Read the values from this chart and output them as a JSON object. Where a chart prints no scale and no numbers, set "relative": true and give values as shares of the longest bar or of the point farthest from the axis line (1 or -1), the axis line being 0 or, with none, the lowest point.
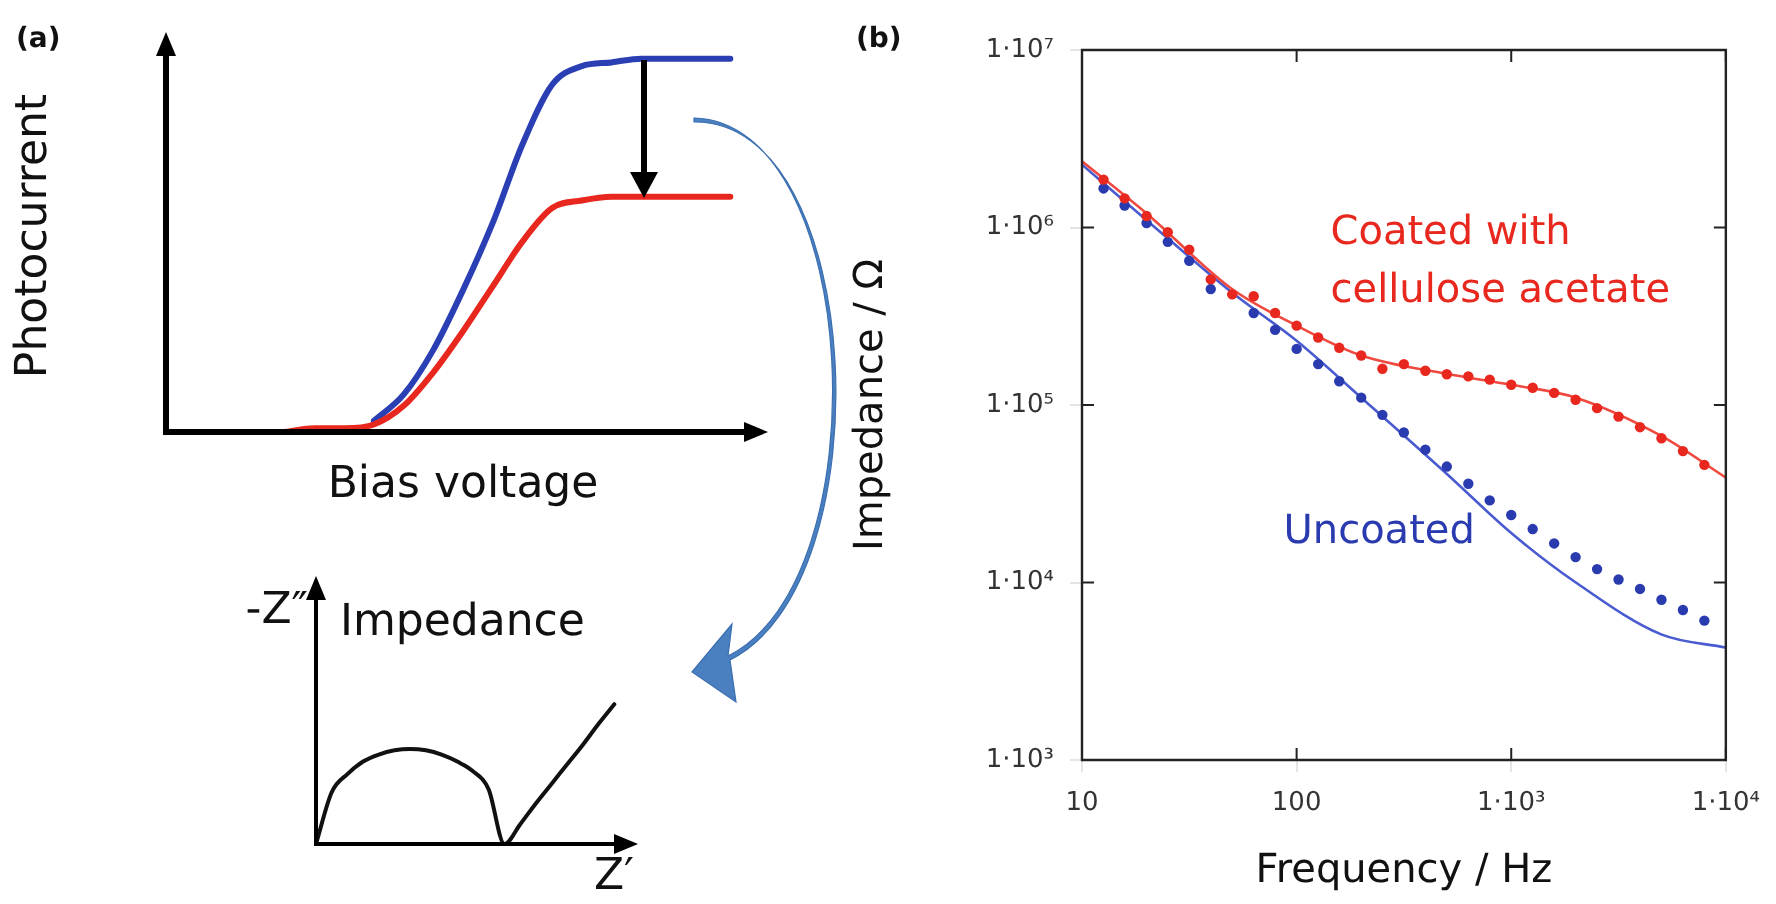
{
  "chart_data": [
    {
      "type": "line",
      "xlabel": "Bias voltage",
      "ylabel": "Photocurrent",
      "annotations": [
        "(a)"
      ],
      "relative": true,
      "tick_labels": false,
      "categories": [
        null,
        null,
        null,
        null,
        null,
        null,
        null,
        null,
        null,
        null,
        null,
        null,
        null,
        null,
        null,
        null,
        null,
        null,
        null,
        null,
        null
      ],
      "series": [
        {
          "color": "#e8281e",
          "values": [
            null,
            null,
            null,
            null,
            0,
            0.01,
            0.01,
            0.02,
            0.07,
            0.16,
            0.27,
            0.39,
            0.51,
            0.6,
            0.62,
            0.63,
            0.63,
            0.63,
            0.63,
            0.63,
            null
          ]
        },
        {
          "color": "#2b3fb5",
          "values": [
            null,
            null,
            null,
            null,
            null,
            null,
            null,
            0.03,
            0.1,
            0.22,
            0.38,
            0.56,
            0.77,
            0.93,
            0.98,
            0.99,
            1,
            1,
            1,
            1,
            null
          ]
        }
      ]
    },
    {
      "type": "line",
      "title": "Impedance",
      "xlabel": "Z′",
      "ylabel": "-Z″",
      "relative": true,
      "tick_labels": false,
      "categories": [
        null,
        null,
        null,
        null,
        null,
        null,
        null,
        null,
        null,
        null,
        null,
        null,
        null,
        null,
        null,
        null,
        null,
        null,
        null,
        null,
        null
      ],
      "series": [
        {
          "color": "#111111",
          "values": [
            0,
            0.37,
            0.5,
            0.59,
            0.64,
            0.67,
            0.68,
            0.67,
            0.64,
            0.59,
            0.52,
            0.39,
            0,
            0.14,
            0.29,
            0.43,
            0.57,
            0.71,
            0.86,
            1,
            null
          ]
        }
      ]
    },
    {
      "type": "line",
      "xlabel": "Frequency / Hz",
      "ylabel": "Impedance / Ω",
      "annotations": [
        "(b)"
      ],
      "log": "xy",
      "xlim": [
        10,
        10000
      ],
      "ylim": [
        1000,
        10000000
      ],
      "xticks": [
        10,
        100,
        {
          "value": 1000,
          "label": "1·10³"
        },
        {
          "value": 10000,
          "label": "1·10⁴"
        }
      ],
      "yticks": [
        {
          "value": 1000,
          "label": "1·10³"
        },
        {
          "value": 10000,
          "label": "1·10⁴"
        },
        {
          "value": 100000,
          "label": "1·10⁵"
        },
        {
          "value": 1000000,
          "label": "1·10⁶"
        },
        {
          "value": 10000000,
          "label": "1·10⁷"
        }
      ],
      "series": [
        {
          "name": "Coated with cellulose acetate",
          "type": "scatter",
          "marker": "circle",
          "color": "#e8281e",
          "x": [
            12.6,
            15.8,
            20,
            25.1,
            31.6,
            39.8,
            50.1,
            63.1,
            79.4,
            100,
            126,
            158,
            200,
            251,
            316,
            398,
            501,
            631,
            794,
            1000,
            1259,
            1585,
            1995,
            2512,
            3162,
            3981,
            5012,
            6310,
            7943
          ],
          "values": [
            1860000,
            1460000,
            1160000,
            940000,
            750000,
            510000,
            420000,
            410000,
            330000,
            280000,
            240000,
            210000,
            190000,
            160000,
            170000,
            156000,
            149000,
            145000,
            139000,
            130000,
            125000,
            117000,
            107000,
            96000,
            86000,
            75000,
            65000,
            55000,
            46000
          ]
        },
        {
          "type": "line",
          "color": "#f04a40",
          "x": [
            10,
            20,
            50,
            100,
            200,
            500,
            1000,
            2000,
            5000,
            10000
          ],
          "values": [
            2360000,
            1200000,
            450000,
            280000,
            190000,
            150000,
            130000,
            110000,
            67000,
            39000
          ]
        },
        {
          "name": "Uncoated",
          "type": "scatter",
          "marker": "circle",
          "color": "#2a3bb0",
          "x": [
            12.6,
            15.8,
            20,
            25.1,
            31.6,
            39.8,
            50.1,
            63.1,
            79.4,
            100,
            126,
            158,
            200,
            251,
            316,
            398,
            501,
            631,
            794,
            1000,
            1259,
            1585,
            1995,
            2512,
            3162,
            3981,
            5012,
            6310,
            7943
          ],
          "values": [
            1660000,
            1330000,
            1060000,
            830000,
            650000,
            450000,
            null,
            330000,
            265000,
            207000,
            170000,
            136000,
            110000,
            88000,
            70000,
            56000,
            45000,
            36000,
            29000,
            24000,
            20000,
            16600,
            13900,
            11900,
            10400,
            9200,
            8000,
            7000,
            6100
          ]
        },
        {
          "type": "line",
          "color": "#4a5bd0",
          "x": [
            10,
            20,
            50,
            100,
            200,
            500,
            1000,
            2000,
            5000,
            10000
          ],
          "values": [
            2260000,
            1100000,
            430000,
            230000,
            110000,
            41000,
            19000,
            10000,
            5100,
            4300
          ]
        }
      ]
    }
  ]
}
